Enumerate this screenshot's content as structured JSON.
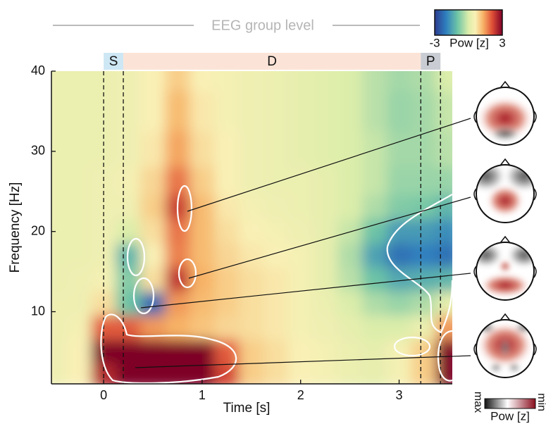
{
  "chart_data": {
    "type": "heatmap",
    "title": "EEG group level",
    "x_label": "Time [s]",
    "y_label": "Frequency [Hz]",
    "xlim": [
      -0.53,
      3.54
    ],
    "ylim": [
      1,
      40
    ],
    "xticks": [
      0,
      1,
      2,
      3
    ],
    "yticks": [
      10,
      20,
      30,
      40
    ],
    "x": [
      -0.5,
      -0.25,
      0,
      0.25,
      0.5,
      0.75,
      1,
      1.25,
      1.5,
      1.75,
      2,
      2.25,
      2.5,
      2.75,
      3,
      3.25,
      3.5
    ],
    "y": [
      40,
      35,
      30,
      26,
      23,
      20,
      17,
      14,
      11,
      8,
      5,
      2
    ],
    "z": [
      [
        0.3,
        0.3,
        0.3,
        0.4,
        0.6,
        1.0,
        0.6,
        0.5,
        0.4,
        0.3,
        0.2,
        0.1,
        0,
        -0.3,
        -0.5,
        -0.4,
        0
      ],
      [
        0.3,
        0.3,
        0.3,
        0.4,
        0.6,
        1.2,
        0.7,
        0.5,
        0.4,
        0.3,
        0.2,
        0.1,
        0,
        -0.3,
        -0.6,
        -0.5,
        -0.2
      ],
      [
        0.3,
        0.3,
        0.3,
        0.4,
        0.7,
        1.4,
        0.8,
        0.6,
        0.4,
        0.3,
        0.2,
        0.1,
        0,
        -0.2,
        -0.5,
        -0.5,
        -0.3
      ],
      [
        0.3,
        0.3,
        0.4,
        0.5,
        0.9,
        1.8,
        1.0,
        0.6,
        0.4,
        0.3,
        0.3,
        0.2,
        0,
        -0.2,
        -0.6,
        -0.6,
        -0.6
      ],
      [
        0.3,
        0.3,
        0.4,
        0.4,
        1.0,
        2.3,
        1.2,
        0.7,
        0.5,
        0.4,
        0.3,
        0.2,
        0,
        -0.4,
        -0.8,
        -0.9,
        -1.2
      ],
      [
        0.3,
        0.3,
        0.4,
        0.0,
        0.8,
        1.8,
        1.2,
        0.8,
        0.6,
        0.5,
        0.4,
        0.2,
        -0.2,
        -1.0,
        -1.6,
        -1.6,
        -1.8
      ],
      [
        0.3,
        0.3,
        0.4,
        -1.2,
        0.6,
        1.7,
        1.2,
        0.9,
        0.7,
        0.6,
        0.5,
        0.2,
        -0.4,
        -1.5,
        -2.2,
        -2.0,
        -2.2
      ],
      [
        0.3,
        0.4,
        0.5,
        -0.8,
        0.8,
        2.4,
        1.3,
        1.0,
        0.8,
        0.7,
        0.5,
        0.2,
        -0.3,
        -1.0,
        -1.4,
        -1.3,
        -1.2
      ],
      [
        0.4,
        0.4,
        0.8,
        -1.0,
        -2.3,
        1.5,
        1.2,
        1.0,
        0.8,
        0.7,
        0.5,
        0.3,
        0,
        -0.4,
        -0.6,
        -0.4,
        0.2
      ],
      [
        0.4,
        0.5,
        2.0,
        2.0,
        1.5,
        1.3,
        1.1,
        0.9,
        0.8,
        0.7,
        0.5,
        0.4,
        0.2,
        0,
        0,
        0.3,
        1.5
      ],
      [
        0.4,
        0.6,
        3.0,
        3.0,
        3.0,
        3.0,
        3.0,
        2.0,
        1.0,
        0.8,
        0.6,
        0.5,
        0.3,
        0.2,
        0.5,
        1.0,
        3.0
      ],
      [
        0.4,
        0.6,
        2.5,
        3.0,
        3.0,
        3.0,
        3.0,
        2.2,
        1.0,
        0.8,
        0.6,
        0.5,
        0.3,
        0.2,
        0.5,
        1.0,
        3.0
      ]
    ],
    "colormap": [
      {
        "value": -3,
        "color": "#2c3b8f"
      },
      {
        "value": -2,
        "color": "#2f7fbf"
      },
      {
        "value": -1,
        "color": "#6cc3a6"
      },
      {
        "value": 0,
        "color": "#dcedaa"
      },
      {
        "value": 0.6,
        "color": "#f9f0b6"
      },
      {
        "value": 1.3,
        "color": "#f7b266"
      },
      {
        "value": 2.1,
        "color": "#df4f36"
      },
      {
        "value": 3,
        "color": "#7e0027"
      }
    ],
    "colorbar": {
      "label": "Pow [z]",
      "clim": [
        -3,
        3
      ],
      "ticks": [
        -3,
        3
      ]
    },
    "phases": [
      {
        "label": "S",
        "start": 0,
        "end": 0.2,
        "color": "#cde7f4"
      },
      {
        "label": "D",
        "start": 0.2,
        "end": 3.22,
        "color": "#fbe4d7"
      },
      {
        "label": "P",
        "start": 3.22,
        "end": 3.42,
        "color": "#c9cdd3"
      }
    ],
    "event_lines": [
      0,
      0.2,
      3.22,
      3.42
    ]
  },
  "topomap_legend": {
    "label": "Pow [z]",
    "max_label": "max",
    "min_label": "min"
  }
}
